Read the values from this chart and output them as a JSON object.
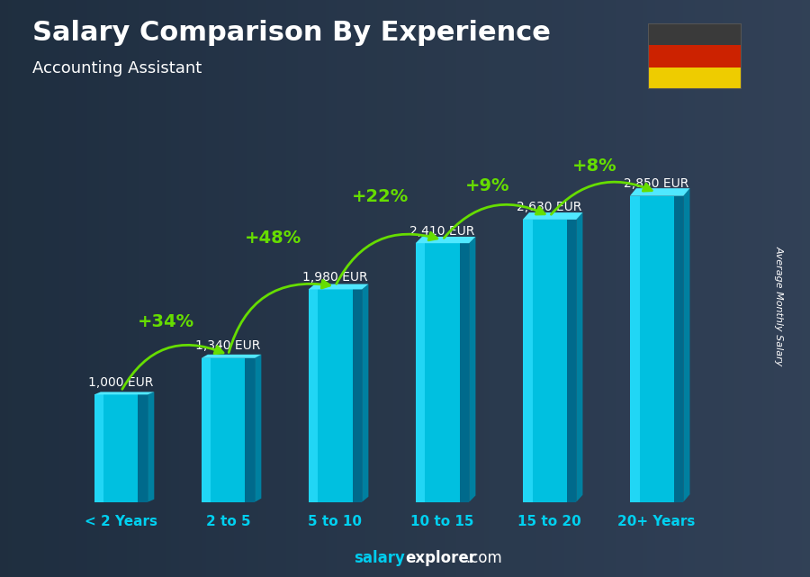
{
  "title": "Salary Comparison By Experience",
  "subtitle": "Accounting Assistant",
  "ylabel": "Average Monthly Salary",
  "categories": [
    "< 2 Years",
    "2 to 5",
    "5 to 10",
    "10 to 15",
    "15 to 20",
    "20+ Years"
  ],
  "values": [
    1000,
    1340,
    1980,
    2410,
    2630,
    2850
  ],
  "pct_changes": [
    "+34%",
    "+48%",
    "+22%",
    "+9%",
    "+8%"
  ],
  "value_labels": [
    "1,000 EUR",
    "1,340 EUR",
    "1,980 EUR",
    "2,410 EUR",
    "2,630 EUR",
    "2,850 EUR"
  ],
  "bar_color_main": "#00c0e0",
  "bar_color_light": "#30e0ff",
  "bar_color_dark": "#0080a0",
  "bar_color_right": "#005577",
  "bar_color_top": "#50e8ff",
  "bg_color": "#2a3a4a",
  "title_color": "#ffffff",
  "subtitle_color": "#ffffff",
  "pct_color": "#66dd00",
  "value_label_color": "#ffffff",
  "tick_color": "#00d0f0",
  "watermark_salary_color": "#00ccee",
  "watermark_rest_color": "#ffffff",
  "flag_stripe_top": "#3a3a3a",
  "flag_stripe_mid": "#cc2200",
  "flag_stripe_bot": "#eecc00",
  "ylim_max": 3600,
  "pct_label_offsets": [
    260,
    400,
    350,
    230,
    200
  ],
  "pct_fontsize": 14,
  "value_label_fontsize": 10
}
